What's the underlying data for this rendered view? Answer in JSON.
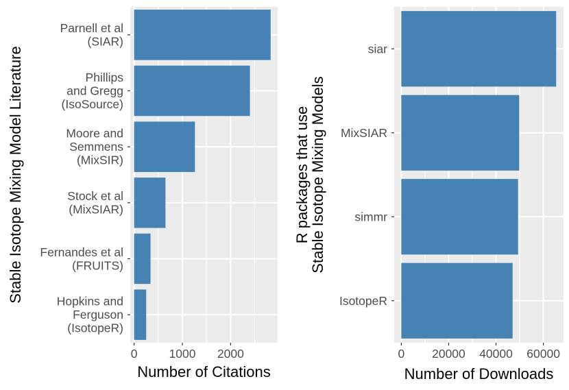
{
  "chart_data": [
    {
      "type": "bar",
      "orientation": "horizontal",
      "categories": [
        [
          "Parnell et al",
          "(SIAR)"
        ],
        [
          "Phillips",
          "and Gregg",
          "(IsoSource)"
        ],
        [
          "Moore and",
          "Semmens",
          "(MixSIR)"
        ],
        [
          "Stock et al",
          "(MixSIAR)"
        ],
        [
          "Fernandes et al",
          "(FRUITS)"
        ],
        [
          "Hopkins and",
          "Ferguson",
          "(IsotopeR)"
        ]
      ],
      "values": [
        2830,
        2400,
        1260,
        650,
        340,
        250
      ],
      "xlabel": "Number of Citations",
      "ylabel": [
        "Stable Isotope Mixing Model Literature"
      ],
      "xlim": [
        -80,
        2975
      ],
      "xticks": [
        0,
        1000,
        2000
      ],
      "xtick_labels": [
        "0",
        "1000",
        "2000"
      ],
      "grid": true,
      "bar_color": "#4682b4"
    },
    {
      "type": "bar",
      "orientation": "horizontal",
      "categories": [
        [
          "siar"
        ],
        [
          "MixSIAR"
        ],
        [
          "simmr"
        ],
        [
          "IsotopeR"
        ]
      ],
      "values": [
        65400,
        49800,
        49300,
        47000
      ],
      "xlabel": "Number of Downloads",
      "ylabel": [
        "R packages that use",
        "Stable Isotope Mixing Models"
      ],
      "xlim": [
        -3000,
        68500
      ],
      "xticks": [
        0,
        20000,
        40000,
        60000
      ],
      "xtick_labels": [
        "0",
        "20000",
        "40000",
        "60000"
      ],
      "grid": true,
      "bar_color": "#4682b4"
    }
  ],
  "colors": {
    "panel_bg": "#ebebeb",
    "grid": "#ffffff",
    "bar": "#4682b4",
    "tick_text": "#4d4d4d",
    "tick_mark": "#333333"
  }
}
